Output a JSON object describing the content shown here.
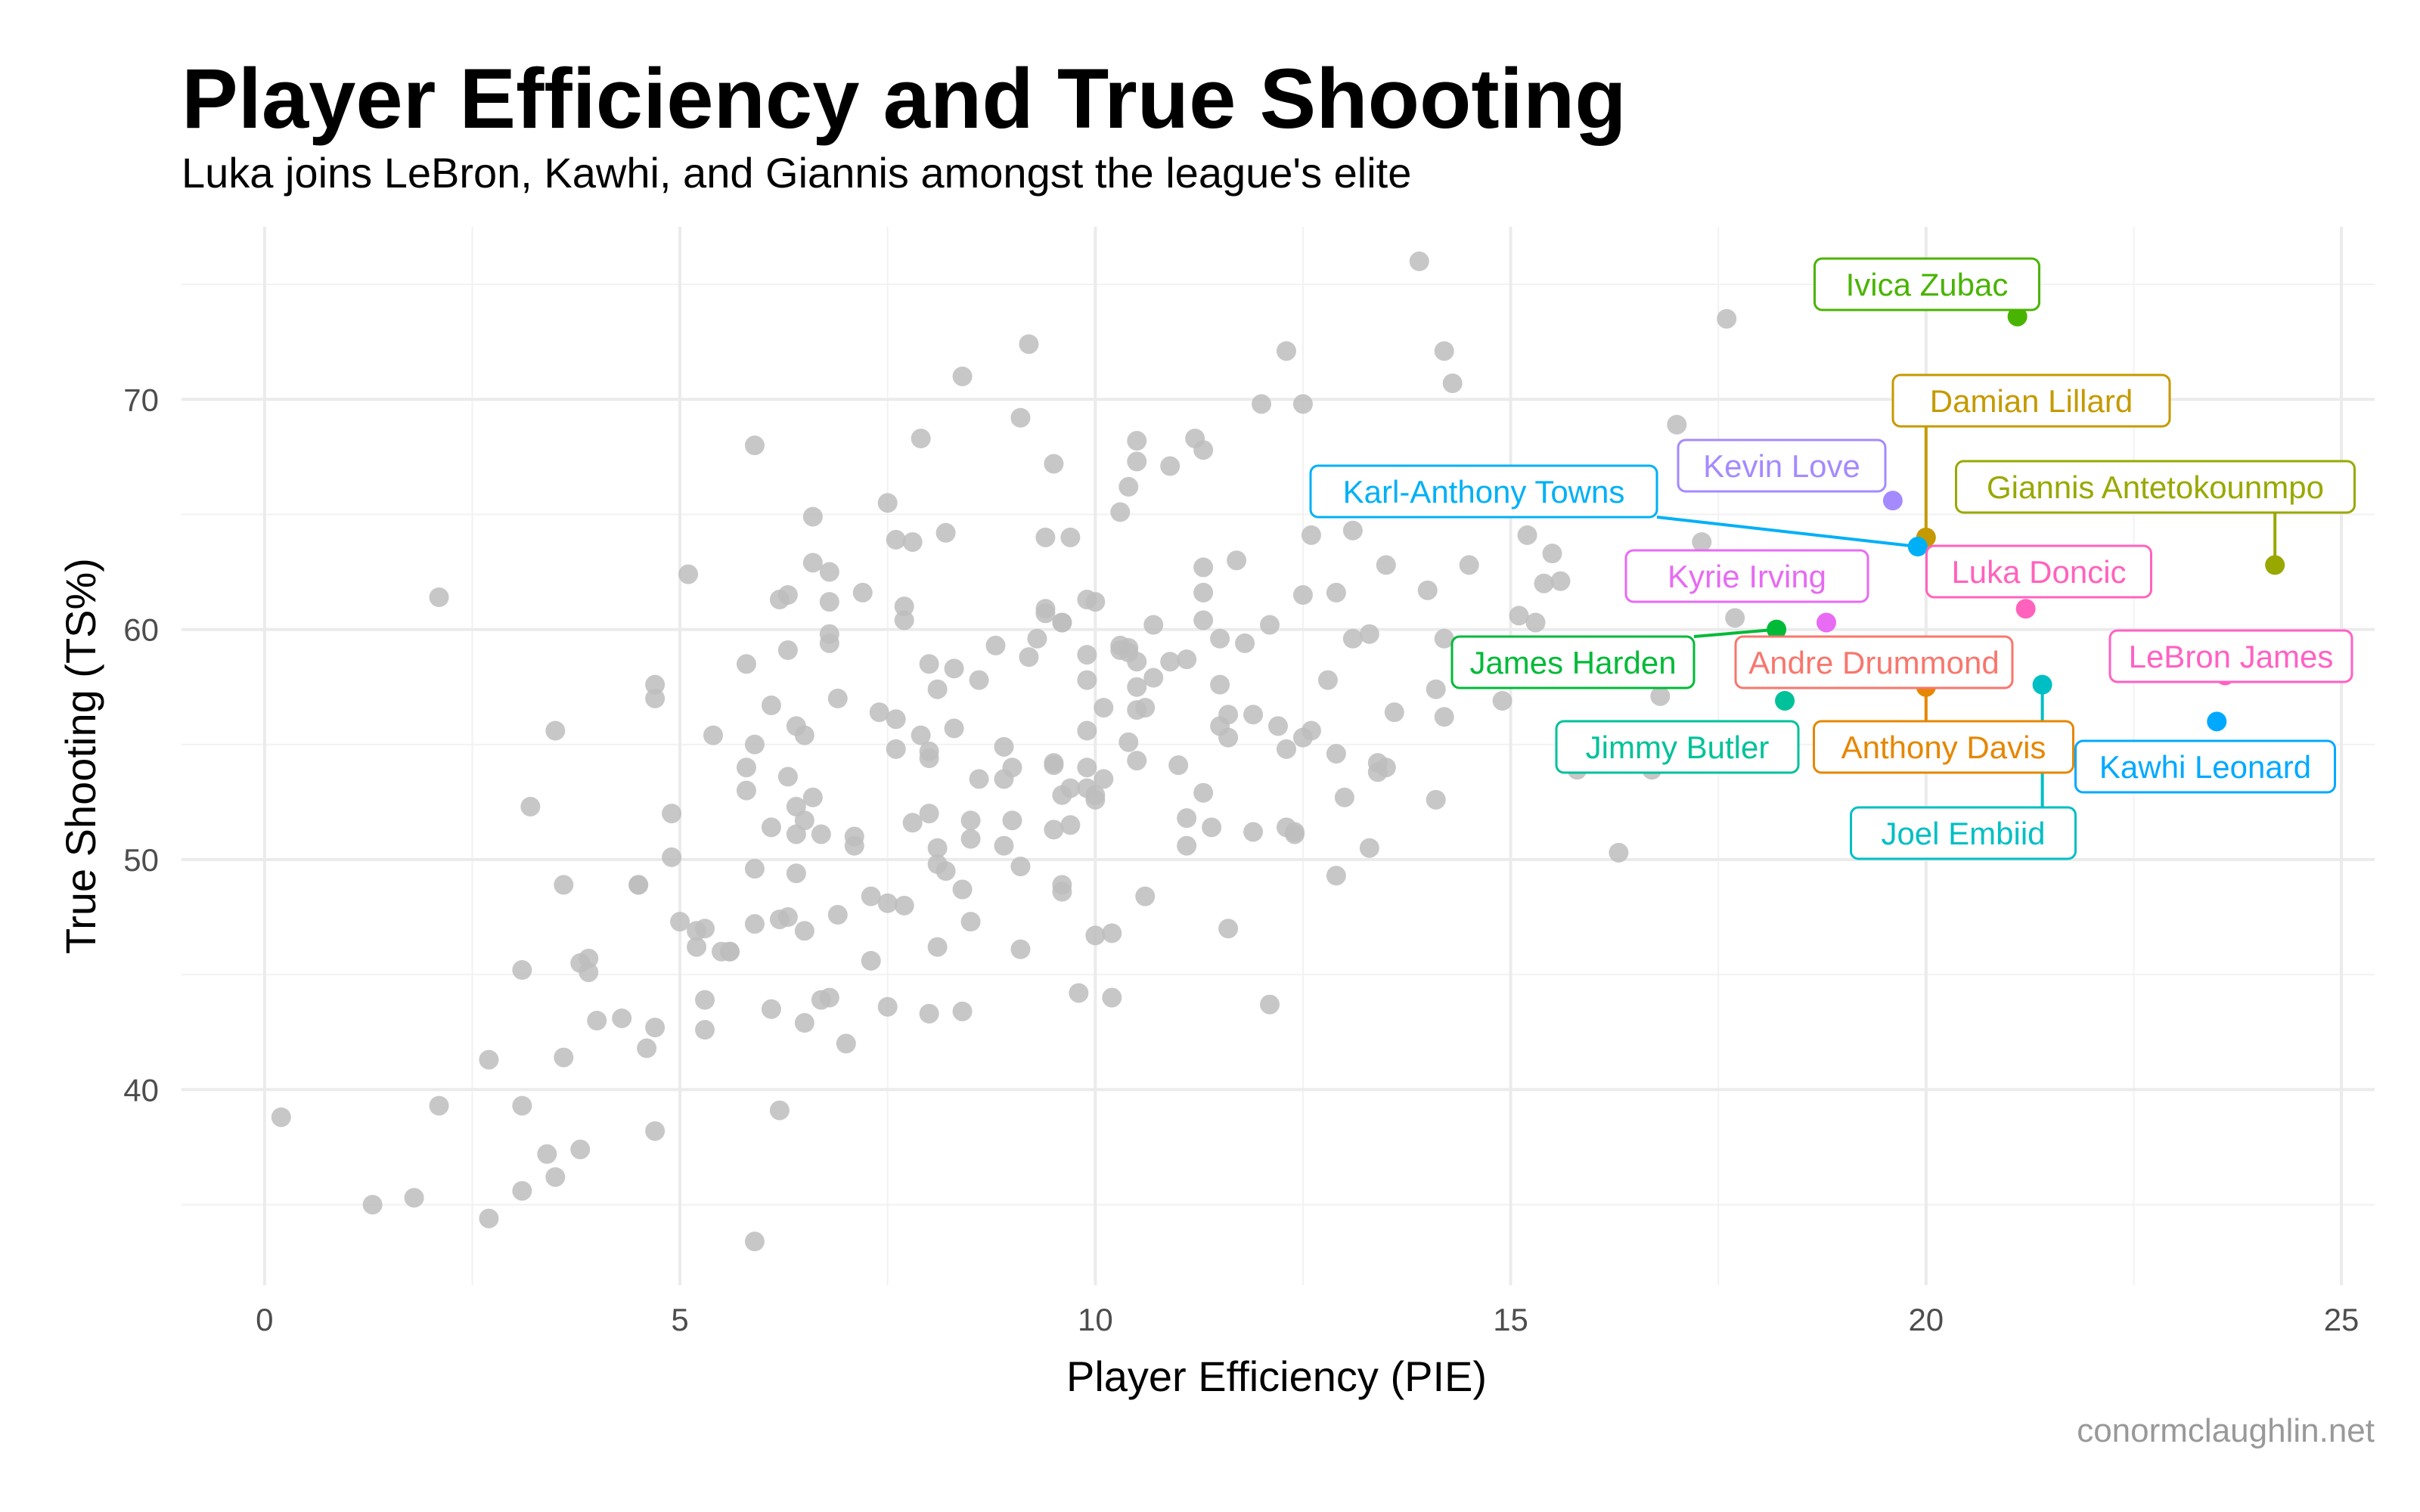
{
  "chart_data": {
    "type": "scatter",
    "title": "Player Efficiency and True Shooting",
    "subtitle": "Luka joins LeBron, Kawhi, and Giannis amongst the league's elite",
    "caption": "conormclaughlin.net",
    "xlabel": "Player Efficiency (PIE)",
    "ylabel": "True Shooting (TS%)",
    "xlim": [
      -1,
      25.4
    ],
    "ylim": [
      31.5,
      77.5
    ],
    "x_ticks": [
      0,
      5,
      10,
      15,
      20,
      25
    ],
    "y_ticks": [
      40,
      50,
      60,
      70
    ],
    "grid": true,
    "background_color": "#bdbdbd",
    "background_points": [
      [
        0.2,
        38.8
      ],
      [
        1.3,
        35.0
      ],
      [
        1.8,
        35.3
      ],
      [
        2.1,
        39.3
      ],
      [
        2.1,
        61.4
      ],
      [
        2.7,
        34.4
      ],
      [
        2.7,
        41.3
      ],
      [
        3.1,
        39.3
      ],
      [
        3.1,
        35.6
      ],
      [
        3.1,
        45.2
      ],
      [
        3.2,
        52.3
      ],
      [
        3.4,
        37.2
      ],
      [
        3.5,
        36.2
      ],
      [
        3.5,
        55.6
      ],
      [
        3.6,
        41.4
      ],
      [
        3.6,
        48.9
      ],
      [
        3.8,
        37.4
      ],
      [
        3.8,
        45.5
      ],
      [
        3.9,
        45.7
      ],
      [
        3.9,
        45.1
      ],
      [
        4.0,
        43.0
      ],
      [
        4.3,
        43.1
      ],
      [
        4.5,
        48.9
      ],
      [
        4.5,
        48.9
      ],
      [
        4.6,
        41.8
      ],
      [
        4.7,
        38.2
      ],
      [
        4.7,
        42.7
      ],
      [
        4.7,
        57.6
      ],
      [
        4.7,
        57.0
      ],
      [
        4.9,
        52.0
      ],
      [
        4.9,
        50.1
      ],
      [
        5.0,
        47.3
      ],
      [
        5.1,
        62.4
      ],
      [
        5.2,
        46.9
      ],
      [
        5.2,
        46.2
      ],
      [
        5.3,
        43.9
      ],
      [
        5.3,
        42.6
      ],
      [
        5.4,
        55.4
      ],
      [
        5.5,
        46.0
      ],
      [
        5.6,
        46.0
      ],
      [
        5.6,
        46.0
      ],
      [
        5.8,
        58.5
      ],
      [
        5.8,
        54.0
      ],
      [
        5.8,
        53.0
      ],
      [
        5.9,
        55.0
      ],
      [
        5.9,
        49.6
      ],
      [
        5.9,
        47.2
      ],
      [
        5.9,
        68.0
      ],
      [
        5.9,
        33.4
      ],
      [
        6.1,
        56.7
      ],
      [
        6.1,
        51.4
      ],
      [
        6.1,
        43.5
      ],
      [
        6.2,
        61.3
      ],
      [
        6.2,
        47.4
      ],
      [
        6.2,
        39.1
      ],
      [
        6.3,
        61.5
      ],
      [
        6.3,
        59.1
      ],
      [
        6.3,
        53.6
      ],
      [
        6.3,
        47.5
      ],
      [
        6.4,
        55.8
      ],
      [
        6.4,
        52.3
      ],
      [
        6.4,
        51.1
      ],
      [
        6.4,
        49.4
      ],
      [
        6.5,
        55.4
      ],
      [
        6.5,
        51.7
      ],
      [
        6.5,
        46.9
      ],
      [
        6.5,
        42.9
      ],
      [
        6.6,
        64.9
      ],
      [
        6.6,
        62.9
      ],
      [
        6.6,
        52.7
      ],
      [
        6.7,
        51.1
      ],
      [
        6.7,
        43.9
      ],
      [
        6.8,
        62.5
      ],
      [
        6.8,
        61.2
      ],
      [
        6.8,
        59.8
      ],
      [
        6.8,
        59.4
      ],
      [
        6.8,
        44.0
      ],
      [
        6.9,
        57.0
      ],
      [
        6.9,
        47.6
      ],
      [
        7.0,
        42.0
      ],
      [
        7.1,
        51.0
      ],
      [
        7.1,
        50.6
      ],
      [
        7.2,
        61.6
      ],
      [
        7.3,
        48.4
      ],
      [
        7.3,
        45.6
      ],
      [
        7.4,
        56.4
      ],
      [
        7.5,
        65.5
      ],
      [
        7.5,
        48.1
      ],
      [
        7.5,
        43.6
      ],
      [
        7.6,
        63.9
      ],
      [
        7.6,
        56.1
      ],
      [
        7.6,
        54.8
      ],
      [
        7.7,
        61.0
      ],
      [
        7.7,
        60.4
      ],
      [
        7.7,
        48.0
      ],
      [
        7.8,
        63.8
      ],
      [
        7.8,
        51.6
      ],
      [
        7.9,
        68.3
      ],
      [
        7.9,
        55.4
      ],
      [
        8.0,
        58.5
      ],
      [
        8.0,
        54.7
      ],
      [
        8.0,
        54.4
      ],
      [
        8.0,
        52.0
      ],
      [
        8.0,
        43.3
      ],
      [
        8.1,
        57.4
      ],
      [
        8.1,
        50.5
      ],
      [
        8.1,
        49.8
      ],
      [
        8.1,
        46.2
      ],
      [
        8.2,
        64.2
      ],
      [
        8.2,
        49.5
      ],
      [
        8.3,
        58.3
      ],
      [
        8.3,
        55.7
      ],
      [
        8.4,
        71.0
      ],
      [
        8.4,
        48.7
      ],
      [
        8.4,
        43.4
      ],
      [
        8.5,
        51.7
      ],
      [
        8.5,
        50.9
      ],
      [
        8.5,
        47.3
      ],
      [
        8.6,
        57.8
      ],
      [
        8.6,
        53.5
      ],
      [
        8.8,
        59.3
      ],
      [
        8.9,
        54.9
      ],
      [
        8.9,
        53.5
      ],
      [
        8.9,
        50.6
      ],
      [
        9.0,
        51.7
      ],
      [
        9.0,
        54.0
      ],
      [
        9.1,
        69.2
      ],
      [
        9.1,
        49.7
      ],
      [
        9.1,
        46.1
      ],
      [
        9.2,
        72.4
      ],
      [
        9.2,
        58.8
      ],
      [
        9.3,
        59.6
      ],
      [
        9.4,
        64.0
      ],
      [
        9.4,
        60.9
      ],
      [
        9.4,
        60.7
      ],
      [
        9.5,
        67.2
      ],
      [
        9.5,
        54.1
      ],
      [
        9.5,
        54.2
      ],
      [
        9.5,
        51.3
      ],
      [
        9.6,
        60.3
      ],
      [
        9.6,
        52.8
      ],
      [
        9.6,
        48.9
      ],
      [
        9.6,
        48.6
      ],
      [
        9.7,
        64.0
      ],
      [
        9.7,
        53.1
      ],
      [
        9.7,
        51.5
      ],
      [
        9.8,
        44.2
      ],
      [
        9.9,
        61.3
      ],
      [
        9.9,
        58.9
      ],
      [
        9.9,
        57.8
      ],
      [
        9.9,
        55.6
      ],
      [
        9.9,
        54.0
      ],
      [
        9.9,
        53.1
      ],
      [
        10.0,
        52.8
      ],
      [
        10.0,
        52.6
      ],
      [
        10.0,
        46.7
      ],
      [
        10.0,
        61.2
      ],
      [
        10.1,
        56.6
      ],
      [
        10.1,
        53.5
      ],
      [
        10.2,
        44.0
      ],
      [
        10.2,
        46.8
      ],
      [
        10.3,
        65.1
      ],
      [
        10.3,
        59.3
      ],
      [
        10.3,
        59.1
      ],
      [
        10.4,
        66.2
      ],
      [
        10.4,
        59.2
      ],
      [
        10.4,
        59.0
      ],
      [
        10.4,
        55.1
      ],
      [
        10.5,
        68.2
      ],
      [
        10.5,
        67.3
      ],
      [
        10.5,
        58.6
      ],
      [
        10.5,
        57.5
      ],
      [
        10.5,
        56.5
      ],
      [
        10.5,
        54.3
      ],
      [
        10.6,
        56.6
      ],
      [
        10.6,
        48.4
      ],
      [
        10.7,
        60.2
      ],
      [
        10.7,
        57.9
      ],
      [
        10.9,
        67.1
      ],
      [
        10.9,
        58.6
      ],
      [
        11.0,
        54.1
      ],
      [
        11.1,
        58.7
      ],
      [
        11.1,
        51.8
      ],
      [
        11.1,
        50.6
      ],
      [
        11.2,
        68.3
      ],
      [
        11.3,
        67.8
      ],
      [
        11.3,
        62.7
      ],
      [
        11.3,
        61.6
      ],
      [
        11.3,
        60.4
      ],
      [
        11.3,
        52.9
      ],
      [
        11.4,
        51.4
      ],
      [
        11.5,
        59.6
      ],
      [
        11.5,
        57.6
      ],
      [
        11.5,
        55.8
      ],
      [
        11.6,
        56.3
      ],
      [
        11.6,
        55.3
      ],
      [
        11.6,
        47.0
      ],
      [
        11.8,
        59.4
      ],
      [
        11.9,
        56.3
      ],
      [
        11.9,
        51.2
      ],
      [
        12.0,
        69.8
      ],
      [
        12.1,
        60.2
      ],
      [
        12.1,
        43.7
      ],
      [
        12.2,
        55.8
      ],
      [
        12.3,
        72.1
      ],
      [
        12.3,
        54.8
      ],
      [
        12.3,
        51.4
      ],
      [
        12.4,
        51.2
      ],
      [
        12.4,
        51.1
      ],
      [
        12.5,
        69.8
      ],
      [
        12.5,
        61.5
      ],
      [
        12.5,
        55.3
      ],
      [
        12.6,
        64.1
      ],
      [
        12.6,
        55.6
      ],
      [
        12.8,
        57.8
      ],
      [
        12.9,
        61.6
      ],
      [
        12.9,
        54.6
      ],
      [
        12.9,
        49.3
      ],
      [
        13.0,
        52.7
      ],
      [
        13.1,
        64.3
      ],
      [
        13.1,
        59.6
      ],
      [
        13.3,
        59.8
      ],
      [
        13.3,
        50.5
      ],
      [
        13.4,
        53.8
      ],
      [
        13.4,
        54.2
      ],
      [
        13.5,
        62.8
      ],
      [
        13.5,
        54.0
      ],
      [
        13.6,
        56.4
      ],
      [
        13.9,
        76.0
      ],
      [
        14.0,
        61.7
      ],
      [
        14.1,
        52.6
      ],
      [
        14.1,
        57.4
      ],
      [
        14.2,
        72.1
      ],
      [
        14.2,
        59.6
      ],
      [
        14.2,
        56.2
      ],
      [
        14.3,
        70.7
      ],
      [
        14.5,
        62.8
      ],
      [
        14.9,
        56.9
      ],
      [
        15.1,
        60.6
      ],
      [
        15.2,
        64.1
      ],
      [
        15.3,
        60.3
      ],
      [
        15.4,
        62.0
      ],
      [
        15.5,
        63.3
      ],
      [
        15.6,
        62.1
      ],
      [
        15.8,
        53.9
      ],
      [
        16.3,
        50.3
      ],
      [
        16.7,
        53.9
      ],
      [
        16.8,
        57.1
      ],
      [
        17.0,
        68.9
      ],
      [
        17.3,
        63.8
      ],
      [
        17.6,
        73.5
      ],
      [
        17.7,
        60.5
      ],
      [
        13.7,
        65.4
      ],
      [
        9.6,
        60.3
      ],
      [
        5.3,
        47.0
      ],
      [
        11.7,
        63.0
      ]
    ],
    "labeled_players": [
      {
        "name": "Ivica Zubac",
        "x": 21.1,
        "y": 73.6,
        "color": "#49B400"
      },
      {
        "name": "Damian Lillard",
        "x": 20.0,
        "y": 64.0,
        "color": "#C49A00"
      },
      {
        "name": "Kevin Love",
        "x": 19.6,
        "y": 65.6,
        "color": "#A58AFF"
      },
      {
        "name": "Karl-Anthony Towns",
        "x": 19.9,
        "y": 63.6,
        "color": "#00B0F6"
      },
      {
        "name": "Giannis Antetokounmpo",
        "x": 24.2,
        "y": 62.8,
        "color": "#99A800"
      },
      {
        "name": "Luka Doncic",
        "x": 21.2,
        "y": 60.9,
        "color": "#FF62BC"
      },
      {
        "name": "Kyrie Irving",
        "x": 18.8,
        "y": 60.3,
        "color": "#E76BF3"
      },
      {
        "name": "James Harden",
        "x": 18.2,
        "y": 60.0,
        "color": "#00BA38"
      },
      {
        "name": "Andre Drummond",
        "x": 20.0,
        "y": 57.6,
        "color": "#F8766D"
      },
      {
        "name": "LeBron James",
        "x": 23.6,
        "y": 58.0,
        "color": "#FF61C3"
      },
      {
        "name": "Jimmy Butler",
        "x": 18.3,
        "y": 56.9,
        "color": "#00C19A"
      },
      {
        "name": "Anthony Davis",
        "x": 20.0,
        "y": 57.5,
        "color": "#E58700"
      },
      {
        "name": "Kawhi Leonard",
        "x": 23.5,
        "y": 56.0,
        "color": "#00A9FF"
      },
      {
        "name": "Joel Embiid",
        "x": 21.4,
        "y": 57.6,
        "color": "#00BFC4"
      }
    ]
  }
}
